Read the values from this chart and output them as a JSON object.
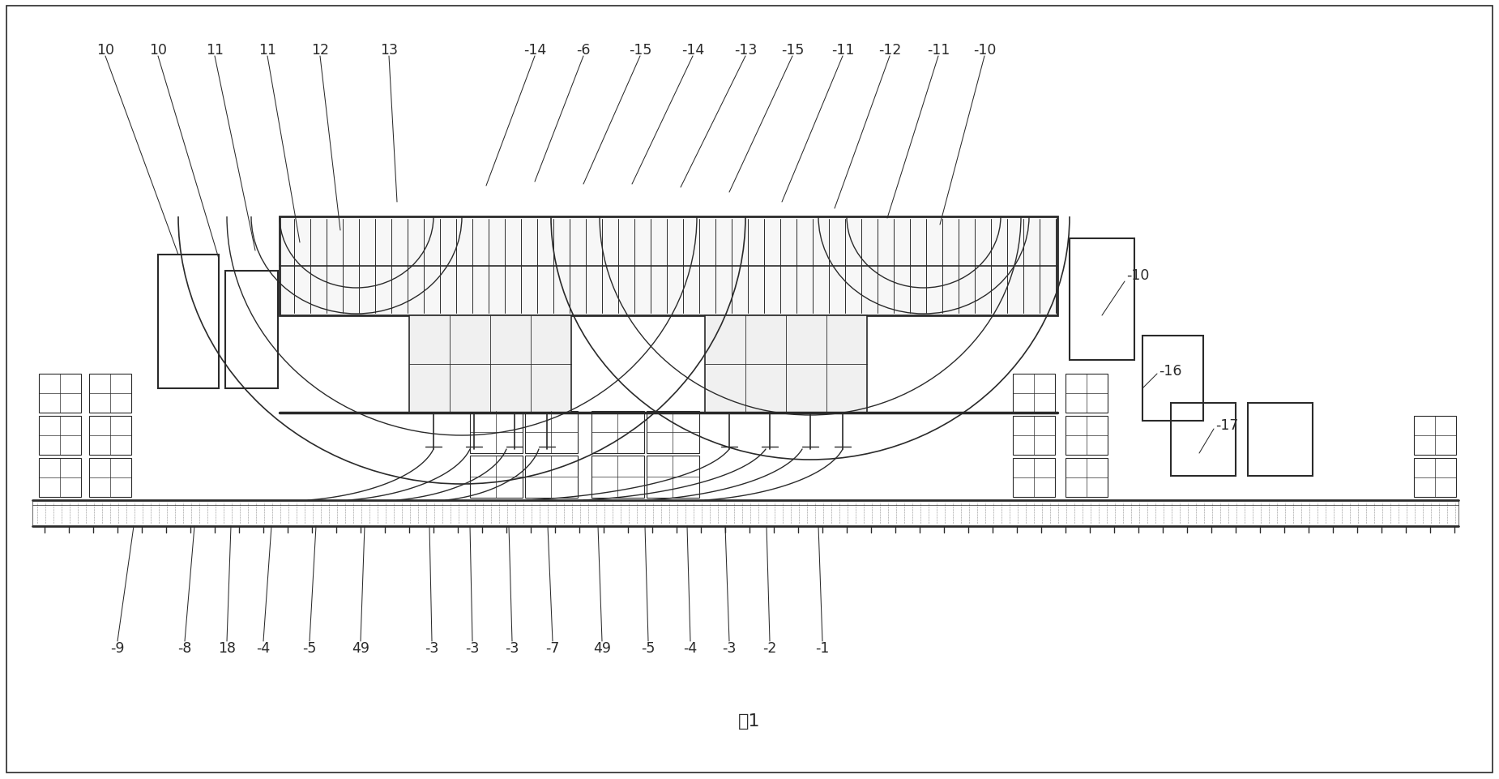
{
  "bg_color": "#ffffff",
  "line_color": "#2a2a2a",
  "figure_caption": "图1",
  "top_labels": [
    [
      "10",
      130,
      62
    ],
    [
      "10",
      195,
      62
    ],
    [
      "11",
      265,
      62
    ],
    [
      "11",
      330,
      62
    ],
    [
      "12",
      395,
      62
    ],
    [
      "13",
      480,
      62
    ],
    [
      "-14",
      655,
      62
    ],
    [
      "-6",
      720,
      62
    ],
    [
      "-15",
      785,
      62
    ],
    [
      "-14",
      850,
      62
    ],
    [
      "-13",
      910,
      62
    ],
    [
      "-15",
      965,
      62
    ],
    [
      "-11",
      1025,
      62
    ],
    [
      "-12",
      1080,
      62
    ],
    [
      "-11",
      1140,
      62
    ],
    [
      "-10",
      1200,
      62
    ]
  ],
  "bottom_labels": [
    [
      "-9",
      145,
      795
    ],
    [
      "-8",
      225,
      795
    ],
    [
      "18",
      278,
      795
    ],
    [
      "-4",
      320,
      795
    ],
    [
      "-5",
      378,
      795
    ],
    [
      "49",
      440,
      795
    ],
    [
      "-3",
      530,
      795
    ],
    [
      "-3",
      580,
      795
    ],
    [
      "-3",
      628,
      795
    ],
    [
      "-7",
      680,
      795
    ],
    [
      "49",
      740,
      795
    ],
    [
      "-5",
      798,
      795
    ],
    [
      "-4",
      848,
      795
    ],
    [
      "-3",
      895,
      795
    ],
    [
      "-2",
      945,
      795
    ],
    [
      "-1",
      1010,
      795
    ]
  ],
  "right_labels": [
    [
      "-10",
      1390,
      355
    ],
    [
      "-16",
      1430,
      460
    ],
    [
      "-17",
      1490,
      530
    ]
  ]
}
